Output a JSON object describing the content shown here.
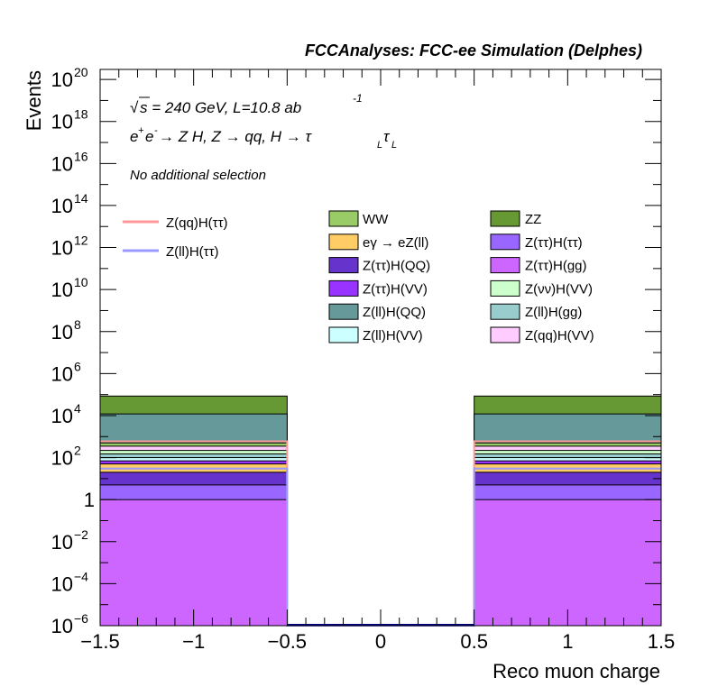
{
  "chart_data": {
    "type": "bar",
    "title": "FCCAnalyses: FCC-ee Simulation (Delphes)",
    "xlabel": "Reco muon charge",
    "ylabel": "Events",
    "xlim": [
      -1.5,
      1.5
    ],
    "ylim": [
      1e-06,
      3e+20
    ],
    "yscale": "log",
    "x_ticks": [
      "−1.5",
      "−1",
      "−0.5",
      "0",
      "0.5",
      "1",
      "1.5"
    ],
    "x_tick_values": [
      -1.5,
      -1,
      -0.5,
      0,
      0.5,
      1,
      1.5
    ],
    "y_ticks": [
      {
        "value": 1e-06,
        "base": "10",
        "exp": "−6"
      },
      {
        "value": 0.0001,
        "base": "10",
        "exp": "−4"
      },
      {
        "value": 0.01,
        "base": "10",
        "exp": "−2"
      },
      {
        "value": 1,
        "base": "1",
        "exp": ""
      },
      {
        "value": 100.0,
        "base": "10",
        "exp": "2"
      },
      {
        "value": 10000.0,
        "base": "10",
        "exp": "4"
      },
      {
        "value": 1000000.0,
        "base": "10",
        "exp": "6"
      },
      {
        "value": 100000000.0,
        "base": "10",
        "exp": "8"
      },
      {
        "value": 10000000000.0,
        "base": "10",
        "exp": "10"
      },
      {
        "value": 1000000000000.0,
        "base": "10",
        "exp": "12"
      },
      {
        "value": 100000000000000.0,
        "base": "10",
        "exp": "14"
      },
      {
        "value": 1e+16,
        "base": "10",
        "exp": "16"
      },
      {
        "value": 1e+18,
        "base": "10",
        "exp": "18"
      },
      {
        "value": 1e+20,
        "base": "10",
        "exp": "20"
      }
    ],
    "bins": [
      [
        -1.5,
        -0.5
      ],
      [
        -0.5,
        0.5
      ],
      [
        0.5,
        1.5
      ]
    ],
    "stack_series": [
      {
        "name": "Z(ττ)H(gg)",
        "color": "#cc66ff",
        "cumulative": [
          1,
          0,
          1
        ]
      },
      {
        "name": "Z(ττ)H(ττ)",
        "color": "#9966ff",
        "cumulative": [
          5,
          0,
          5
        ]
      },
      {
        "name": "Z(ττ)H(QQ)",
        "color": "#6633cc",
        "cumulative": [
          20,
          0,
          20
        ]
      },
      {
        "name": "eγ → eZ(ll)",
        "color": "#ffcc66",
        "cumulative": [
          50,
          0,
          50
        ]
      },
      {
        "name": "Z(ττ)H(VV)",
        "color": "#9933ff",
        "cumulative": [
          70,
          0,
          70
        ]
      },
      {
        "name": "Z(ll)H(VV)",
        "color": "#ccffff",
        "cumulative": [
          100,
          0,
          100
        ]
      },
      {
        "name": "Z(ll)H(gg)",
        "color": "#99cccc",
        "cumulative": [
          150,
          0,
          150
        ]
      },
      {
        "name": "Z(νν)H(VV)",
        "color": "#ccffcc",
        "cumulative": [
          220,
          0,
          220
        ]
      },
      {
        "name": "Z(qq)H(VV)",
        "color": "#ffccff",
        "cumulative": [
          350,
          0,
          350
        ]
      },
      {
        "name": "WW",
        "color": "#99cc66",
        "cumulative": [
          500,
          0,
          500
        ]
      },
      {
        "name": "Z(ll)H(QQ)",
        "color": "#669999",
        "cumulative": [
          12000,
          0,
          12000
        ]
      },
      {
        "name": "ZZ",
        "color": "#669933",
        "cumulative": [
          85000,
          0,
          85000
        ]
      }
    ],
    "line_series": [
      {
        "name": "Z(qq)H(ττ)",
        "color": "#ff9999",
        "values": [
          600,
          1e-06,
          600
        ]
      },
      {
        "name": "Z(ll)H(ττ)",
        "color": "#9999ff",
        "values": [
          30,
          1e-06,
          30
        ]
      }
    ],
    "legend_left": [
      {
        "name": "Z(qq)H(ττ)",
        "color": "#ff9999"
      },
      {
        "name": "Z(ll)H(ττ)",
        "color": "#9999ff"
      }
    ],
    "legend_col1": [
      {
        "name": "WW",
        "color": "#99cc66"
      },
      {
        "name": "eγ → eZ(ll)",
        "color": "#ffcc66"
      },
      {
        "name": "Z(ττ)H(QQ)",
        "color": "#6633cc"
      },
      {
        "name": "Z(ττ)H(VV)",
        "color": "#9933ff"
      },
      {
        "name": "Z(ll)H(QQ)",
        "color": "#669999"
      },
      {
        "name": "Z(ll)H(VV)",
        "color": "#ccffff"
      }
    ],
    "legend_col2": [
      {
        "name": "ZZ",
        "color": "#669933"
      },
      {
        "name": "Z(ττ)H(ττ)",
        "color": "#9966ff"
      },
      {
        "name": "Z(ττ)H(gg)",
        "color": "#cc66ff"
      },
      {
        "name": "Z(νν)H(VV)",
        "color": "#ccffcc"
      },
      {
        "name": "Z(ll)H(gg)",
        "color": "#99cccc"
      },
      {
        "name": "Z(qq)H(VV)",
        "color": "#ffccff"
      }
    ]
  },
  "annotations": {
    "sqrt_symbol": "√",
    "energy": "s = 240 GeV, L=10.8 ab",
    "energy_sup": "-1",
    "process_e": "e",
    "process_plus": "+",
    "process_e2": "e",
    "process_minus": "-",
    "process_main": " → Z H, Z  → qq, H  → τ",
    "tau_sub1": "L",
    "tau2": "τ",
    "tau_sub2": "L",
    "selection": "No additional selection"
  }
}
